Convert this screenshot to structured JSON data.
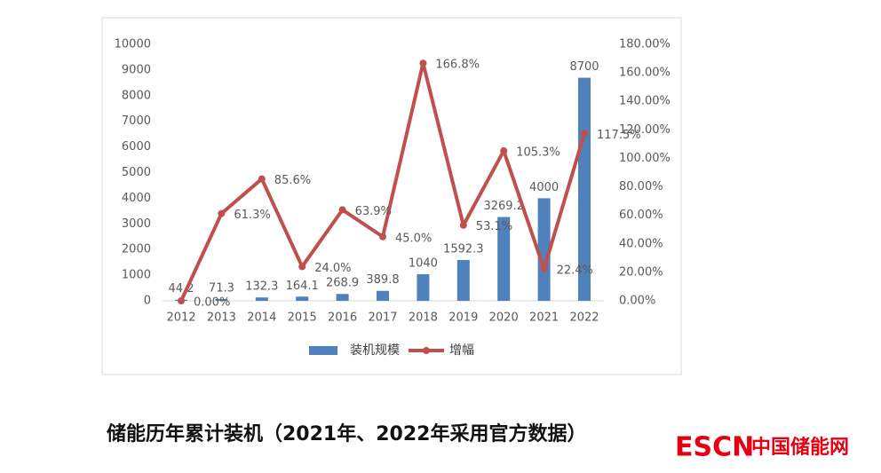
{
  "chart_data": {
    "type": "bar",
    "categories": [
      "2012",
      "2013",
      "2014",
      "2015",
      "2016",
      "2017",
      "2018",
      "2019",
      "2020",
      "2021",
      "2022"
    ],
    "series": [
      {
        "name": "装机规模",
        "type": "bar",
        "color": "#4f81bd",
        "values": [
          44.2,
          71.3,
          132.3,
          164.1,
          268.9,
          389.8,
          1040,
          1592.3,
          3269.2,
          4000,
          8700
        ]
      },
      {
        "name": "增幅",
        "type": "line",
        "axis": "y2",
        "color": "#c0504d",
        "values": [
          0,
          61.3,
          85.6,
          24.0,
          63.9,
          45.0,
          166.8,
          53.1,
          105.3,
          22.4,
          117.5
        ],
        "value_labels": [
          "0.00%",
          "61.3%",
          "85.6%",
          "24.0%",
          "63.9%",
          "45.0%",
          "166.8%",
          "53.1%",
          "105.3%",
          "22.4%",
          "117.5%"
        ]
      }
    ],
    "ylim": [
      0,
      10000
    ],
    "yticks": [
      0,
      1000,
      2000,
      3000,
      4000,
      5000,
      6000,
      7000,
      8000,
      9000,
      10000
    ],
    "y2lim": [
      0,
      180
    ],
    "y2ticks": [
      {
        "value": 0,
        "label": "0.00%"
      },
      {
        "value": 20,
        "label": "20.00%"
      },
      {
        "value": 40,
        "label": "40.00%"
      },
      {
        "value": 60,
        "label": "60.00%"
      },
      {
        "value": 80,
        "label": "80.00%"
      },
      {
        "value": 100,
        "label": "100.00%"
      },
      {
        "value": 120,
        "label": "120.00%"
      },
      {
        "value": 140,
        "label": "140.00%"
      },
      {
        "value": 160,
        "label": "160.00%"
      },
      {
        "value": 180,
        "label": "180.00%"
      }
    ],
    "grid": false,
    "legend": "bottom"
  },
  "caption": "储能历年累计装机（2021年、2022年采用官方数据）",
  "logo": {
    "mark": "ESCN",
    "name": "中国储能网"
  }
}
